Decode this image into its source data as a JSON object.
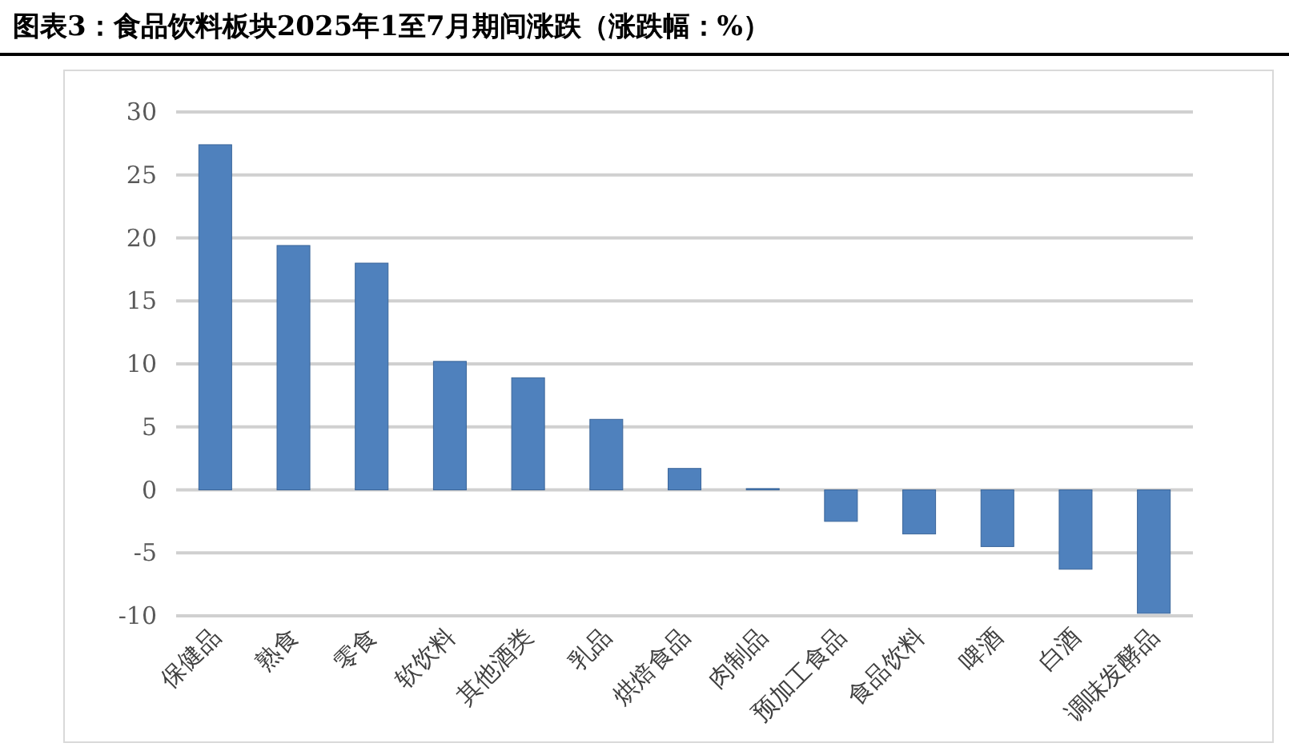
{
  "chart_data": {
    "type": "bar",
    "title": "图表3：食品饮料板块2025年1至7月期间涨跌（涨跌幅：%）",
    "categories": [
      "保健品",
      "熟食",
      "零食",
      "软饮料",
      "其他酒类",
      "乳品",
      "烘焙食品",
      "肉制品",
      "预加工食品",
      "食品饮料",
      "啤酒",
      "白酒",
      "调味发酵品"
    ],
    "values": [
      27.4,
      19.4,
      18.0,
      10.2,
      8.9,
      5.6,
      1.7,
      0.1,
      -2.5,
      -3.5,
      -4.5,
      -6.3,
      -9.8
    ],
    "color": "#4f81bd",
    "ylim": [
      -10,
      30
    ],
    "yticks": [
      -10,
      -5,
      0,
      5,
      10,
      15,
      20,
      25,
      30
    ],
    "grid": "y"
  }
}
